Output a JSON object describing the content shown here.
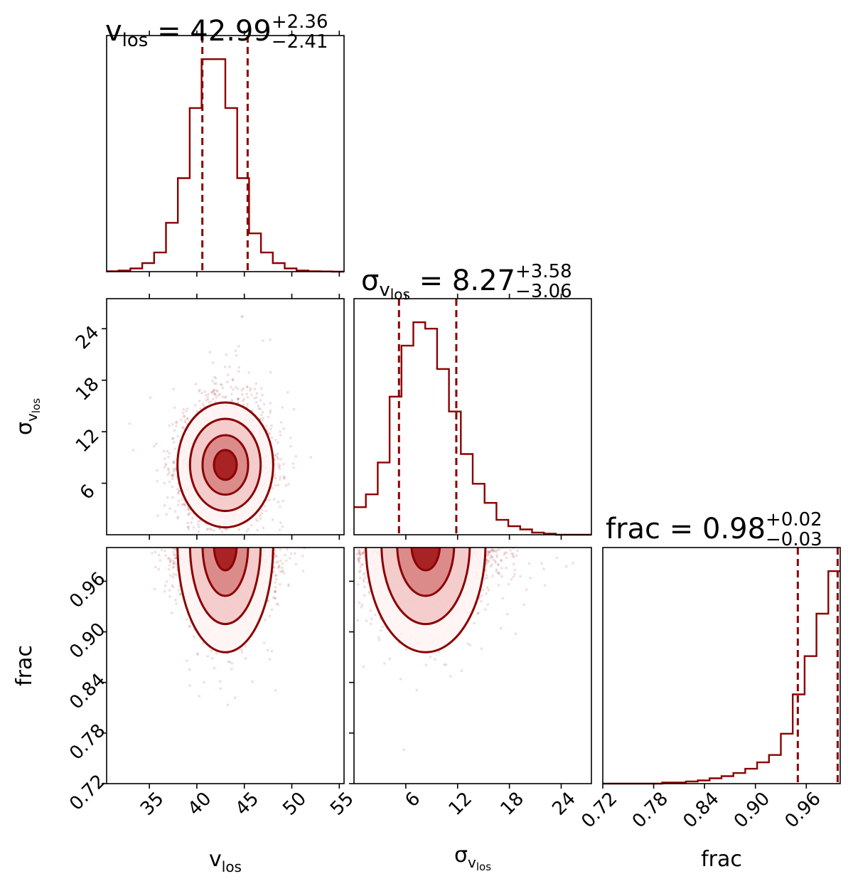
{
  "theme": {
    "color": "#8b0000"
  },
  "chart_data": {
    "type": "scatter",
    "kind": "corner-plot",
    "params": [
      {
        "key": "v_los",
        "symbol": "v",
        "sub": "los",
        "range": [
          30.5,
          55.5
        ],
        "ticks": [
          35,
          40,
          45,
          50,
          55
        ],
        "tick_labels": [
          "35",
          "40",
          "45",
          "50",
          "55"
        ]
      },
      {
        "key": "sigma_v_los",
        "symbol": "σ",
        "sub": "v",
        "subsub": "los",
        "range": [
          0,
          27.5
        ],
        "ticks": [
          6,
          12,
          18,
          24
        ],
        "tick_labels": [
          "6",
          "12",
          "18",
          "24"
        ]
      },
      {
        "key": "frac",
        "symbol": "frac",
        "range": [
          0.72,
          1.0
        ],
        "ticks": [
          0.72,
          0.78,
          0.84,
          0.9,
          0.96
        ],
        "tick_labels": [
          "0.72",
          "0.78",
          "0.84",
          "0.90",
          "0.96"
        ]
      }
    ],
    "axis_labels": {
      "v_los": {
        "main": "v",
        "sub": "los"
      },
      "sigma": {
        "main": "σ",
        "sub": "v",
        "subsub": "los"
      },
      "frac": {
        "main": "frac"
      }
    },
    "titles": [
      {
        "param": "v_los",
        "main": "v",
        "sub": "los",
        "eq": " = 42.99",
        "plus": "+2.36",
        "minus": "−2.41"
      },
      {
        "param": "sigma_v_los",
        "main": "σ",
        "sub": "v",
        "subsub": "los",
        "eq": " = 8.27",
        "plus": "+3.58",
        "minus": "−3.06"
      },
      {
        "param": "frac",
        "main": "frac",
        "eq": " = 0.98",
        "plus": "+0.02",
        "minus": "−0.03"
      }
    ],
    "marginals": [
      {
        "param": "v_los",
        "bin_edges": [
          30.5,
          31.75,
          33,
          34.25,
          35.5,
          36.75,
          38,
          39.25,
          40.5,
          41.75,
          43,
          44.25,
          45.5,
          46.75,
          48,
          49.25,
          50.5,
          51.75,
          53,
          54.25,
          55.5
        ],
        "counts": [
          0.2,
          0.5,
          1.5,
          4,
          9,
          23,
          44,
          77,
          100,
          100,
          77,
          44,
          18,
          9,
          4,
          1.5,
          0.5,
          0.2,
          0.1,
          0
        ],
        "quantiles": [
          40.58,
          45.35
        ]
      },
      {
        "param": "sigma_v_los",
        "bin_edges": [
          0,
          1.375,
          2.75,
          4.125,
          5.5,
          6.875,
          8.25,
          9.625,
          11,
          12.375,
          13.75,
          15.125,
          16.5,
          17.875,
          19.25,
          20.625,
          22,
          23.375,
          24.75,
          26.125,
          27.5
        ],
        "counts": [
          13,
          19,
          34,
          65,
          89,
          100,
          97,
          78,
          58,
          38,
          24,
          15,
          7,
          4,
          2.5,
          1,
          0.5,
          0,
          0,
          0
        ],
        "quantiles": [
          5.21,
          11.85
        ]
      },
      {
        "param": "frac",
        "bin_edges": [
          0.72,
          0.734,
          0.748,
          0.762,
          0.776,
          0.79,
          0.804,
          0.818,
          0.832,
          0.846,
          0.86,
          0.874,
          0.888,
          0.902,
          0.916,
          0.93,
          0.944,
          0.958,
          0.972,
          0.986,
          1.0
        ],
        "counts": [
          0,
          0,
          0,
          0,
          0,
          0.5,
          0.5,
          1,
          1.5,
          2.5,
          3.5,
          5,
          7,
          10,
          13.5,
          23.5,
          42,
          60,
          80,
          100
        ],
        "quantiles": [
          0.95,
          0.997
        ]
      }
    ],
    "joints": [
      {
        "x": "v_los",
        "y": "sigma_v_los",
        "center": [
          43.0,
          8.3
        ],
        "spread": [
          2.4,
          3.3
        ]
      },
      {
        "x": "v_los",
        "y": "frac",
        "center": [
          43.0,
          0.985
        ],
        "spread": [
          2.4,
          0.03
        ]
      },
      {
        "x": "sigma_v_los",
        "y": "frac",
        "center": [
          8.3,
          0.985
        ],
        "spread": [
          3.3,
          0.03
        ]
      }
    ]
  }
}
